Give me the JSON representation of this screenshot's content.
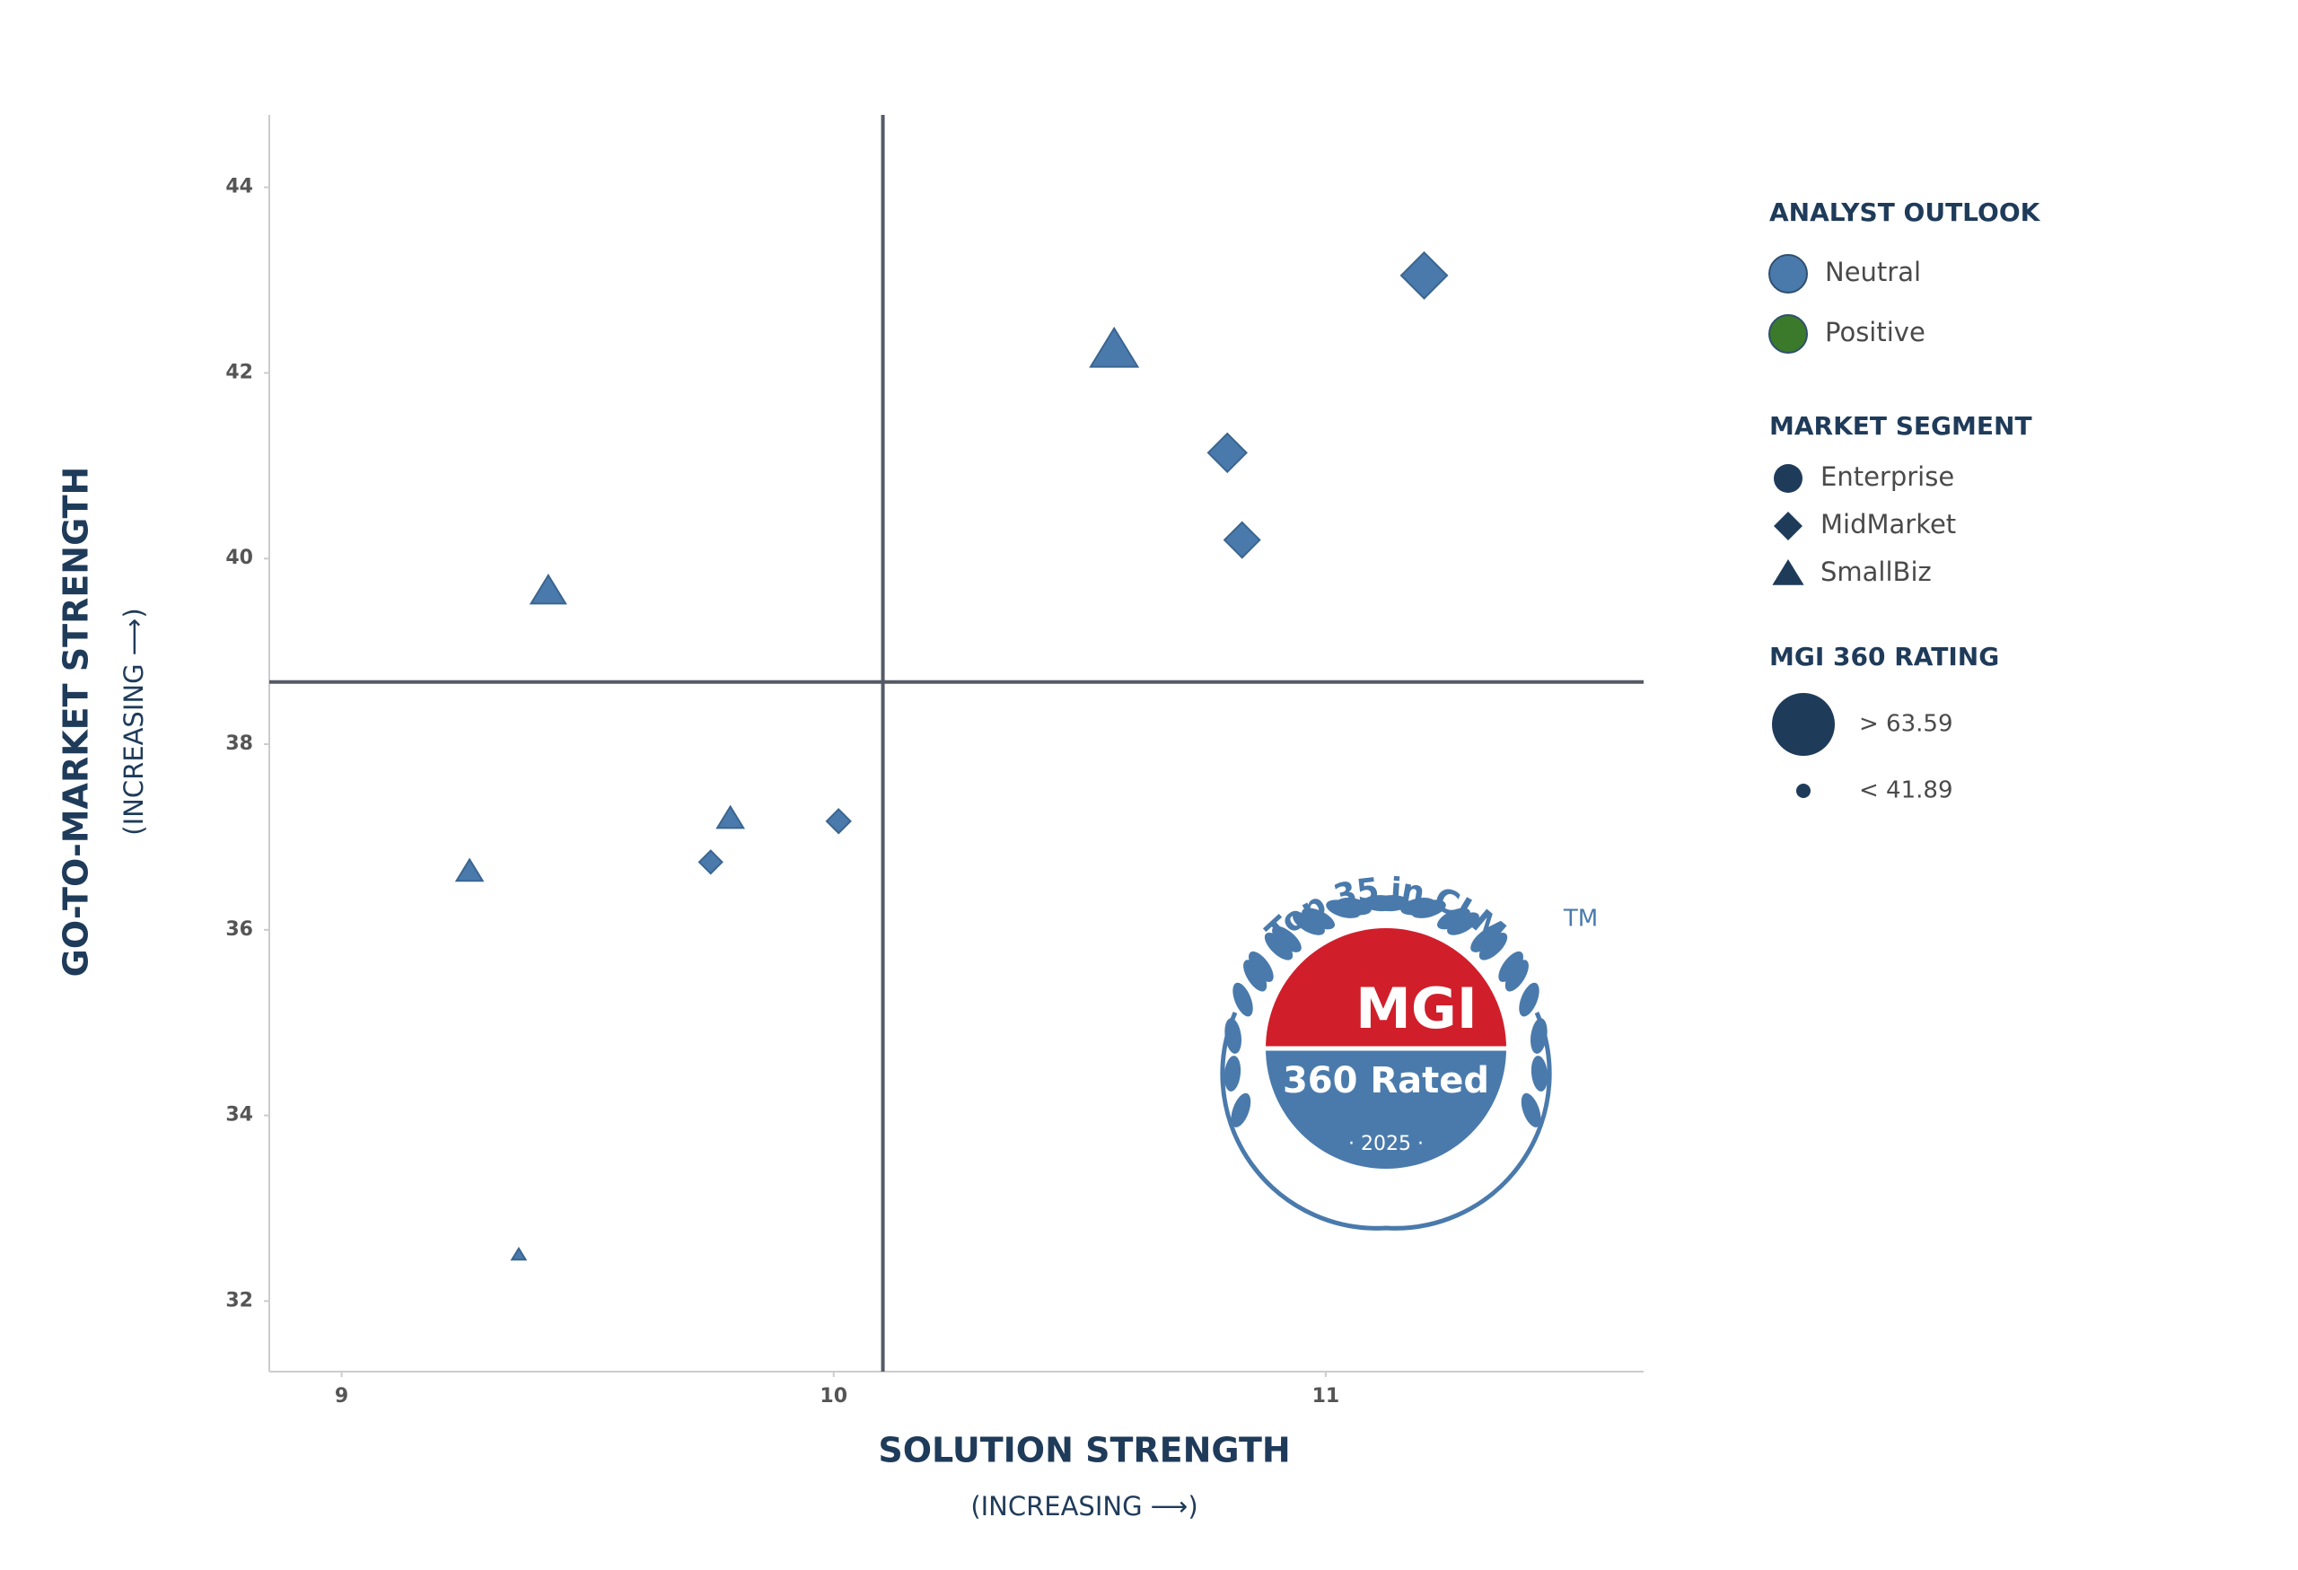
{
  "chart_data": {
    "type": "scatter",
    "x_label": "SOLUTION STRENGTH",
    "x_sublabel": "(INCREASING ⟶)",
    "y_label": "GO-TO-MARKET STRENGTH",
    "y_sublabel": "(INCREASING ⟶)",
    "xlim": [
      8.853,
      11.646
    ],
    "ylim": [
      31.24,
      44.78
    ],
    "xticks": [
      9,
      10,
      11
    ],
    "yticks": [
      32,
      34,
      36,
      38,
      40,
      42,
      44
    ],
    "reference_lines": {
      "x": 10.1,
      "y": 38.67
    },
    "points": {
      "x": [
        11.2,
        10.57,
        10.8,
        10.83,
        9.42,
        9.79,
        10.01,
        9.75,
        9.26,
        9.36
      ],
      "y": [
        43.05,
        42.25,
        41.14,
        40.2,
        39.65,
        37.2,
        37.17,
        36.73,
        36.63,
        32.5
      ],
      "size": [
        59.6,
        58,
        55.6,
        54,
        52,
        48,
        48,
        47.5,
        48,
        42
      ],
      "segment": [
        "MidMarket",
        "SmallBiz",
        "MidMarket",
        "MidMarket",
        "SmallBiz",
        "SmallBiz",
        "MidMarket",
        "MidMarket",
        "SmallBiz",
        "SmallBiz"
      ],
      "outlook": [
        "Neutral",
        "Neutral",
        "Neutral",
        "Neutral",
        "Neutral",
        "Neutral",
        "Neutral",
        "Neutral",
        "Neutral",
        "Neutral"
      ]
    },
    "legend": {
      "outlook": {
        "title": "ANALYST OUTLOOK",
        "items": [
          {
            "name": "Neutral",
            "color": "#4a7aac"
          },
          {
            "name": "Positive",
            "color": "#3b7a2a"
          }
        ]
      },
      "segment": {
        "title": "MARKET SEGMENT",
        "color": "#1f3b5a",
        "items": [
          {
            "name": "Enterprise",
            "shape": "circle"
          },
          {
            "name": "MidMarket",
            "shape": "diamond"
          },
          {
            "name": "SmallBiz",
            "shape": "triangle"
          }
        ]
      },
      "rating": {
        "title": "MGI 360 RATING",
        "color": "#1f3b5a",
        "items": [
          {
            "value": 63.59,
            "label": "> 63.59"
          },
          {
            "value": 41.89,
            "label": "< 41.89"
          }
        ]
      }
    },
    "badge": {
      "arc_text": "Top 35 in CLM",
      "trademark": "TM",
      "brand": "MGI",
      "subtitle": "360 Rated",
      "year": "· 2025 ·"
    }
  }
}
